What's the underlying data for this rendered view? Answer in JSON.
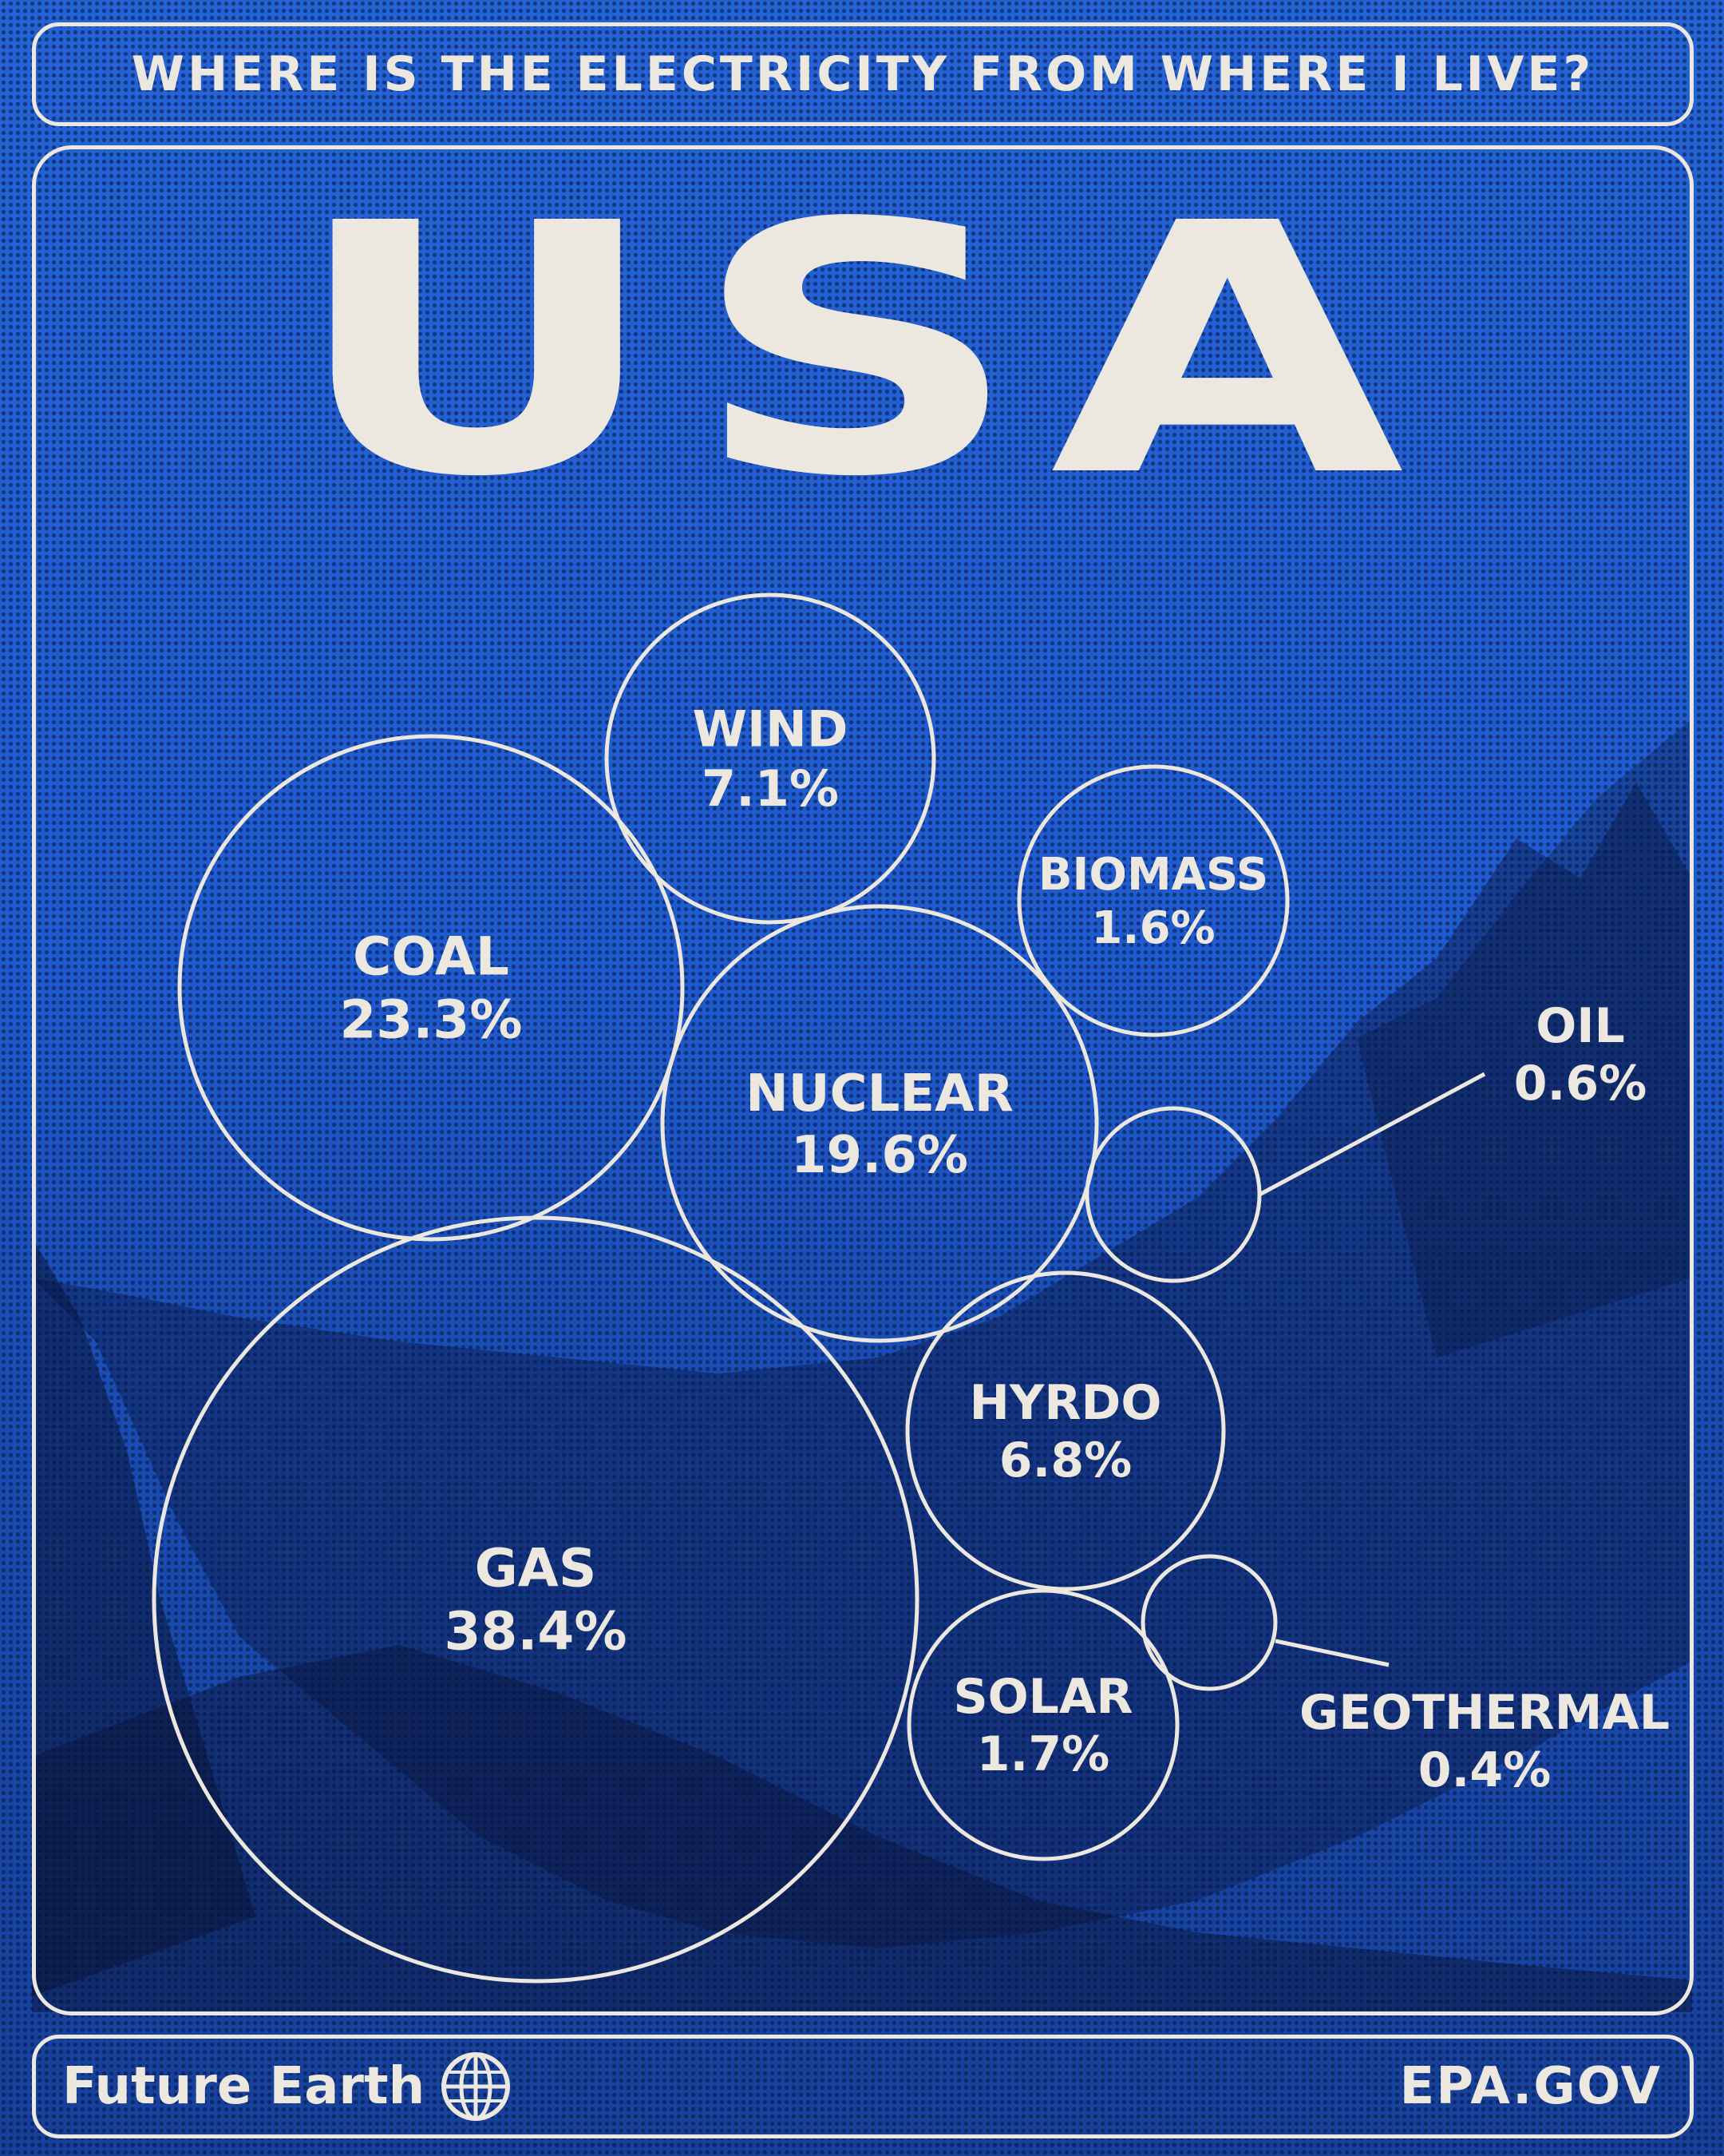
{
  "header": {
    "question": "WHERE IS THE ELECTRICITY FROM WHERE I LIVE?"
  },
  "title": "USA",
  "footer": {
    "brand": "Future Earth",
    "brand_icon": "globe-icon",
    "source": "EPA.GOV"
  },
  "colors": {
    "background": "#1f5cc9",
    "ink": "#ece8df",
    "shadow": "#0d1f4f"
  },
  "chart_data": {
    "type": "bubble",
    "unit": "%",
    "data": [
      {
        "label": "GAS",
        "value": 38.4,
        "value_label": "38.4%"
      },
      {
        "label": "COAL",
        "value": 23.3,
        "value_label": "23.3%"
      },
      {
        "label": "NUCLEAR",
        "value": 19.6,
        "value_label": "19.6%"
      },
      {
        "label": "WIND",
        "value": 7.1,
        "value_label": "7.1%"
      },
      {
        "label": "HYRDO",
        "value": 6.8,
        "value_label": "6.8%"
      },
      {
        "label": "SOLAR",
        "value": 1.7,
        "value_label": "1.7%"
      },
      {
        "label": "BIOMASS",
        "value": 1.6,
        "value_label": "1.6%"
      },
      {
        "label": "OIL",
        "value": 0.6,
        "value_label": "0.6%"
      },
      {
        "label": "GEOTHERMAL",
        "value": 0.4,
        "value_label": "0.4%"
      }
    ]
  }
}
